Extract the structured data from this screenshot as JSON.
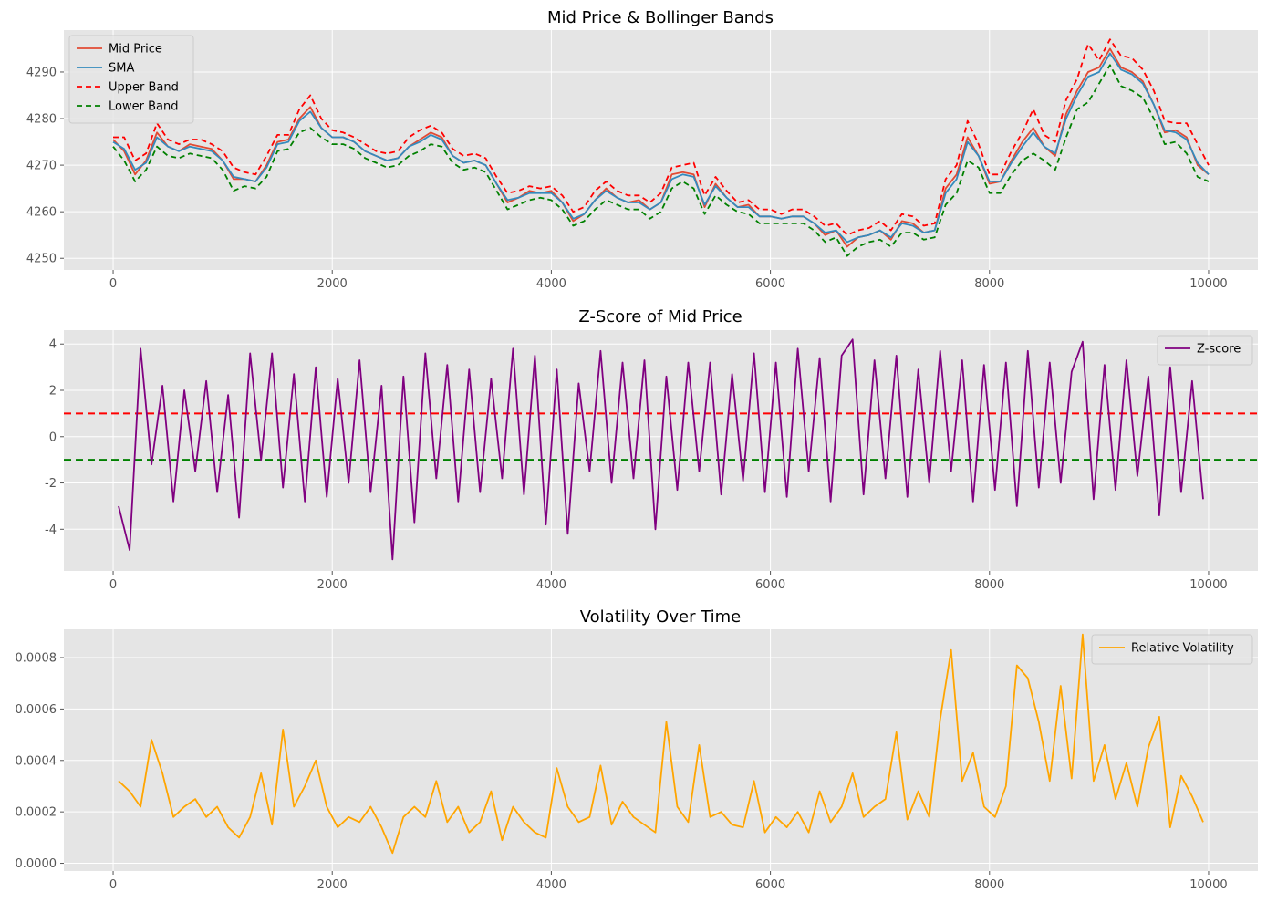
{
  "chart_data": [
    {
      "type": "line",
      "title": "Mid Price & Bollinger Bands",
      "xlim": [
        -450,
        10450
      ],
      "ylim": [
        4247.5,
        4299.0
      ],
      "xticks": [
        0,
        2000,
        4000,
        6000,
        8000,
        10000
      ],
      "yticks": [
        4250,
        4260,
        4270,
        4280,
        4290
      ],
      "legend_position": "upper-left",
      "grid": true,
      "x": [
        0,
        100,
        200,
        300,
        400,
        500,
        600,
        700,
        800,
        900,
        1000,
        1100,
        1200,
        1300,
        1400,
        1500,
        1600,
        1700,
        1800,
        1900,
        2000,
        2100,
        2200,
        2300,
        2400,
        2500,
        2600,
        2700,
        2800,
        2900,
        3000,
        3100,
        3200,
        3300,
        3400,
        3500,
        3600,
        3700,
        3800,
        3900,
        4000,
        4100,
        4200,
        4300,
        4400,
        4500,
        4600,
        4700,
        4800,
        4900,
        5000,
        5100,
        5200,
        5300,
        5400,
        5500,
        5600,
        5700,
        5800,
        5900,
        6000,
        6100,
        6200,
        6300,
        6400,
        6500,
        6600,
        6700,
        6800,
        6900,
        7000,
        7100,
        7200,
        7300,
        7400,
        7500,
        7600,
        7700,
        7800,
        7900,
        8000,
        8100,
        8200,
        8300,
        8400,
        8500,
        8600,
        8700,
        8800,
        8900,
        9000,
        9100,
        9200,
        9300,
        9400,
        9500,
        9600,
        9700,
        9800,
        9900,
        10000
      ],
      "series": [
        {
          "name": "Mid Price",
          "color": "#e24a33",
          "dash": "",
          "values": [
            4275.5,
            4273.0,
            4268.0,
            4271.0,
            4277.0,
            4274.0,
            4273.0,
            4274.5,
            4274.0,
            4273.5,
            4271.0,
            4267.0,
            4267.0,
            4266.5,
            4270.0,
            4275.0,
            4275.5,
            4280.0,
            4282.5,
            4278.0,
            4276.0,
            4276.0,
            4275.0,
            4273.0,
            4272.0,
            4271.0,
            4271.5,
            4274.0,
            4275.5,
            4277.0,
            4276.0,
            4272.0,
            4270.5,
            4271.0,
            4270.0,
            4266.0,
            4262.0,
            4263.0,
            4264.5,
            4264.0,
            4264.5,
            4262.0,
            4258.0,
            4259.5,
            4262.5,
            4265.0,
            4263.0,
            4262.0,
            4262.5,
            4260.5,
            4262.0,
            4268.0,
            4268.5,
            4268.0,
            4261.0,
            4266.0,
            4263.0,
            4261.0,
            4261.5,
            4259.0,
            4259.0,
            4258.5,
            4259.0,
            4259.0,
            4257.5,
            4255.0,
            4256.0,
            4252.5,
            4254.5,
            4255.0,
            4256.0,
            4254.0,
            4258.0,
            4257.5,
            4255.5,
            4256.0,
            4265.0,
            4268.0,
            4276.0,
            4272.0,
            4266.0,
            4266.5,
            4271.0,
            4275.0,
            4278.0,
            4274.0,
            4272.0,
            4281.0,
            4286.0,
            4290.0,
            4291.0,
            4295.0,
            4291.0,
            4290.0,
            4288.0,
            4283.0,
            4277.0,
            4277.5,
            4276.0,
            4270.0,
            4268.0
          ]
        },
        {
          "name": "SMA",
          "color": "#348abd",
          "dash": "",
          "values": [
            4275.0,
            4273.5,
            4269.0,
            4270.5,
            4276.0,
            4274.0,
            4273.0,
            4274.0,
            4273.5,
            4273.0,
            4271.0,
            4267.5,
            4267.0,
            4266.5,
            4269.5,
            4274.5,
            4275.0,
            4279.5,
            4281.5,
            4278.0,
            4276.0,
            4276.0,
            4275.0,
            4273.0,
            4272.0,
            4271.0,
            4271.5,
            4274.0,
            4275.0,
            4276.5,
            4275.5,
            4272.0,
            4270.5,
            4271.0,
            4270.0,
            4266.0,
            4262.5,
            4263.0,
            4264.0,
            4264.0,
            4264.0,
            4262.0,
            4258.5,
            4259.5,
            4262.5,
            4264.5,
            4263.0,
            4262.0,
            4262.0,
            4260.5,
            4262.0,
            4267.0,
            4268.0,
            4267.5,
            4261.5,
            4265.5,
            4263.0,
            4261.0,
            4261.0,
            4259.0,
            4259.0,
            4258.5,
            4259.0,
            4259.0,
            4257.5,
            4255.5,
            4256.0,
            4253.5,
            4254.5,
            4255.0,
            4256.0,
            4254.5,
            4257.5,
            4257.0,
            4255.5,
            4256.0,
            4264.0,
            4267.0,
            4275.0,
            4272.0,
            4266.5,
            4266.5,
            4270.5,
            4274.0,
            4277.0,
            4274.0,
            4272.5,
            4280.0,
            4285.0,
            4289.0,
            4290.0,
            4294.0,
            4290.5,
            4289.5,
            4287.5,
            4283.0,
            4277.5,
            4277.0,
            4275.5,
            4270.5,
            4268.0
          ]
        },
        {
          "name": "Upper Band",
          "color": "#ff0000",
          "dash": "6,4",
          "values": [
            4276.0,
            4276.0,
            4271.0,
            4272.5,
            4279.0,
            4275.5,
            4274.5,
            4275.5,
            4275.5,
            4274.5,
            4273.0,
            4269.5,
            4268.5,
            4268.0,
            4272.0,
            4276.5,
            4276.5,
            4282.0,
            4285.0,
            4280.0,
            4277.5,
            4277.0,
            4276.0,
            4274.5,
            4273.0,
            4272.5,
            4273.0,
            4276.0,
            4277.5,
            4278.5,
            4277.0,
            4273.5,
            4272.0,
            4272.5,
            4271.5,
            4267.5,
            4264.0,
            4264.5,
            4265.5,
            4265.0,
            4265.5,
            4263.5,
            4260.0,
            4261.0,
            4264.5,
            4266.5,
            4264.5,
            4263.5,
            4263.5,
            4262.0,
            4264.0,
            4269.5,
            4270.0,
            4270.5,
            4263.5,
            4267.5,
            4264.5,
            4262.0,
            4262.5,
            4260.5,
            4260.5,
            4259.5,
            4260.5,
            4260.5,
            4259.0,
            4257.0,
            4257.5,
            4255.0,
            4256.0,
            4256.5,
            4258.0,
            4256.0,
            4259.5,
            4259.0,
            4257.0,
            4257.5,
            4267.0,
            4270.0,
            4279.5,
            4274.5,
            4268.0,
            4268.0,
            4273.0,
            4277.0,
            4282.0,
            4276.5,
            4275.0,
            4284.0,
            4288.5,
            4296.0,
            4292.5,
            4297.0,
            4293.5,
            4293.0,
            4290.5,
            4286.0,
            4279.5,
            4279.0,
            4279.0,
            4274.5,
            4270.0
          ]
        },
        {
          "name": "Lower Band",
          "color": "#008000",
          "dash": "6,4",
          "values": [
            4274.0,
            4271.0,
            4266.5,
            4269.0,
            4274.0,
            4272.0,
            4271.5,
            4272.5,
            4272.0,
            4271.5,
            4269.0,
            4264.5,
            4265.5,
            4265.0,
            4267.5,
            4273.0,
            4273.5,
            4277.0,
            4278.0,
            4276.0,
            4274.5,
            4274.5,
            4273.5,
            4271.5,
            4270.5,
            4269.5,
            4270.0,
            4272.0,
            4273.0,
            4274.5,
            4274.0,
            4270.5,
            4269.0,
            4269.5,
            4268.5,
            4264.5,
            4260.5,
            4261.5,
            4262.5,
            4263.0,
            4262.5,
            4260.5,
            4257.0,
            4258.0,
            4260.5,
            4262.5,
            4261.5,
            4260.5,
            4260.5,
            4258.5,
            4260.0,
            4265.0,
            4266.5,
            4265.0,
            4259.5,
            4263.5,
            4261.5,
            4260.0,
            4259.5,
            4257.5,
            4257.5,
            4257.5,
            4257.5,
            4257.5,
            4256.0,
            4253.5,
            4254.5,
            4250.5,
            4252.5,
            4253.5,
            4254.0,
            4252.5,
            4255.5,
            4255.5,
            4254.0,
            4254.5,
            4261.5,
            4264.0,
            4271.0,
            4269.5,
            4264.0,
            4264.0,
            4268.0,
            4271.0,
            4272.5,
            4271.0,
            4269.0,
            4276.0,
            4282.0,
            4283.5,
            4287.5,
            4291.5,
            4287.0,
            4286.0,
            4284.5,
            4280.0,
            4274.5,
            4275.0,
            4272.5,
            4267.5,
            4266.5
          ]
        }
      ]
    },
    {
      "type": "line",
      "title": "Z-Score of Mid Price",
      "xlim": [
        -450,
        10450
      ],
      "ylim": [
        -5.8,
        4.6
      ],
      "xticks": [
        0,
        2000,
        4000,
        6000,
        8000,
        10000
      ],
      "yticks": [
        -4,
        -2,
        0,
        2,
        4
      ],
      "legend_position": "upper-right",
      "grid": true,
      "hlines": [
        {
          "y": 1,
          "color": "#ff0000",
          "dash": "8,5"
        },
        {
          "y": -1,
          "color": "#008000",
          "dash": "8,5"
        }
      ],
      "x": [
        50,
        150,
        250,
        350,
        450,
        550,
        650,
        750,
        850,
        950,
        1050,
        1150,
        1250,
        1350,
        1450,
        1550,
        1650,
        1750,
        1850,
        1950,
        2050,
        2150,
        2250,
        2350,
        2450,
        2550,
        2650,
        2750,
        2850,
        2950,
        3050,
        3150,
        3250,
        3350,
        3450,
        3550,
        3650,
        3750,
        3850,
        3950,
        4050,
        4150,
        4250,
        4350,
        4450,
        4550,
        4650,
        4750,
        4850,
        4950,
        5050,
        5150,
        5250,
        5350,
        5450,
        5550,
        5650,
        5750,
        5850,
        5950,
        6050,
        6150,
        6250,
        6350,
        6450,
        6550,
        6650,
        6750,
        6850,
        6950,
        7050,
        7150,
        7250,
        7350,
        7450,
        7550,
        7650,
        7750,
        7850,
        7950,
        8050,
        8150,
        8250,
        8350,
        8450,
        8550,
        8650,
        8750,
        8850,
        8950,
        9050,
        9150,
        9250,
        9350,
        9450,
        9550,
        9650,
        9750,
        9850,
        9950
      ],
      "series": [
        {
          "name": "Z-score",
          "color": "#800080",
          "dash": "",
          "values": [
            -3.0,
            -4.9,
            3.8,
            -1.2,
            2.2,
            -2.8,
            2.0,
            -1.5,
            2.4,
            -2.4,
            1.8,
            -3.5,
            3.6,
            -1.0,
            3.6,
            -2.2,
            2.7,
            -2.8,
            3.0,
            -2.6,
            2.5,
            -2.0,
            3.3,
            -2.4,
            2.2,
            -5.3,
            2.6,
            -3.7,
            3.6,
            -1.8,
            3.1,
            -2.8,
            2.9,
            -2.4,
            2.5,
            -1.8,
            3.8,
            -2.5,
            3.5,
            -3.8,
            2.9,
            -4.2,
            2.3,
            -1.5,
            3.7,
            -2.0,
            3.2,
            -1.8,
            3.3,
            -4.0,
            2.6,
            -2.3,
            3.2,
            -1.5,
            3.2,
            -2.5,
            2.7,
            -1.9,
            3.6,
            -2.4,
            3.2,
            -2.6,
            3.8,
            -1.5,
            3.4,
            -2.8,
            3.5,
            4.2,
            -2.5,
            3.3,
            -1.8,
            3.5,
            -2.6,
            2.9,
            -2.0,
            3.7,
            -1.5,
            3.3,
            -2.8,
            3.1,
            -2.3,
            3.2,
            -3.0,
            3.7,
            -2.2,
            3.2,
            -2.0,
            2.8,
            4.1,
            -2.7,
            3.1,
            -2.3,
            3.3,
            -1.7,
            2.6,
            -3.4,
            3.0,
            -2.4,
            2.4,
            -2.7
          ]
        }
      ]
    },
    {
      "type": "line",
      "title": "Volatility Over Time",
      "xlim": [
        -450,
        10450
      ],
      "ylim": [
        -3e-05,
        0.00091
      ],
      "xticks": [
        0,
        2000,
        4000,
        6000,
        8000,
        10000
      ],
      "yticks": [
        0.0,
        0.0002,
        0.0004,
        0.0006,
        0.0008
      ],
      "ytick_labels": [
        "0.0000",
        "0.0002",
        "0.0004",
        "0.0006",
        "0.0008"
      ],
      "legend_position": "upper-right",
      "grid": true,
      "x": [
        50,
        150,
        250,
        350,
        450,
        550,
        650,
        750,
        850,
        950,
        1050,
        1150,
        1250,
        1350,
        1450,
        1550,
        1650,
        1750,
        1850,
        1950,
        2050,
        2150,
        2250,
        2350,
        2450,
        2550,
        2650,
        2750,
        2850,
        2950,
        3050,
        3150,
        3250,
        3350,
        3450,
        3550,
        3650,
        3750,
        3850,
        3950,
        4050,
        4150,
        4250,
        4350,
        4450,
        4550,
        4650,
        4750,
        4850,
        4950,
        5050,
        5150,
        5250,
        5350,
        5450,
        5550,
        5650,
        5750,
        5850,
        5950,
        6050,
        6150,
        6250,
        6350,
        6450,
        6550,
        6650,
        6750,
        6850,
        6950,
        7050,
        7150,
        7250,
        7350,
        7450,
        7550,
        7650,
        7750,
        7850,
        7950,
        8050,
        8150,
        8250,
        8350,
        8450,
        8550,
        8650,
        8750,
        8850,
        8950,
        9050,
        9150,
        9250,
        9350,
        9450,
        9550,
        9650,
        9750,
        9850,
        9950
      ],
      "series": [
        {
          "name": "Relative Volatility",
          "color": "#ffa500",
          "dash": "",
          "values": [
            0.00032,
            0.00028,
            0.00022,
            0.00048,
            0.00035,
            0.00018,
            0.00022,
            0.00025,
            0.00018,
            0.00022,
            0.00014,
            0.0001,
            0.00018,
            0.00035,
            0.00015,
            0.00052,
            0.00022,
            0.0003,
            0.0004,
            0.00022,
            0.00014,
            0.00018,
            0.00016,
            0.00022,
            0.00014,
            4e-05,
            0.00018,
            0.00022,
            0.00018,
            0.00032,
            0.00016,
            0.00022,
            0.00012,
            0.00016,
            0.00028,
            9e-05,
            0.00022,
            0.00016,
            0.00012,
            0.0001,
            0.00037,
            0.00022,
            0.00016,
            0.00018,
            0.00038,
            0.00015,
            0.00024,
            0.00018,
            0.00015,
            0.00012,
            0.00055,
            0.00022,
            0.00016,
            0.00046,
            0.00018,
            0.0002,
            0.00015,
            0.00014,
            0.00032,
            0.00012,
            0.00018,
            0.00014,
            0.0002,
            0.00012,
            0.00028,
            0.00016,
            0.00022,
            0.00035,
            0.00018,
            0.00022,
            0.00025,
            0.00051,
            0.00017,
            0.00028,
            0.00018,
            0.00056,
            0.00083,
            0.00032,
            0.00043,
            0.00022,
            0.00018,
            0.0003,
            0.00077,
            0.00072,
            0.00055,
            0.00032,
            0.00069,
            0.00033,
            0.00089,
            0.00032,
            0.00046,
            0.00025,
            0.00039,
            0.00022,
            0.00045,
            0.00057,
            0.00014,
            0.00034,
            0.00026,
            0.00016
          ]
        }
      ]
    }
  ]
}
